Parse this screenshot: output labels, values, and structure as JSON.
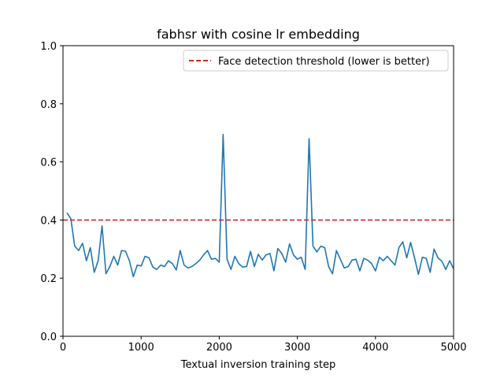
{
  "chart_data": {
    "type": "line",
    "title": "fabhsr with cosine lr embedding",
    "xlabel": "Textual inversion training step",
    "ylabel": "",
    "xlim": [
      0,
      5000
    ],
    "ylim": [
      0.0,
      1.0
    ],
    "xticks": [
      0,
      1000,
      2000,
      3000,
      4000,
      5000
    ],
    "xtick_labels": [
      "0",
      "1000",
      "2000",
      "3000",
      "4000",
      "5000"
    ],
    "yticks": [
      0.0,
      0.2,
      0.4,
      0.6,
      0.8,
      1.0
    ],
    "ytick_labels": [
      "0.0",
      "0.2",
      "0.4",
      "0.6",
      "0.8",
      "1.0"
    ],
    "grid": false,
    "legend_placement": "top-right",
    "colors": {
      "series": "#1f77b4",
      "threshold": "#d62728"
    },
    "series": [
      {
        "x": [
          50,
          100,
          150,
          200,
          250,
          300,
          350,
          400,
          450,
          500,
          550,
          600,
          650,
          700,
          750,
          800,
          850,
          900,
          950,
          1000,
          1050,
          1100,
          1150,
          1200,
          1250,
          1300,
          1350,
          1400,
          1450,
          1500,
          1550,
          1600,
          1650,
          1700,
          1750,
          1800,
          1850,
          1900,
          1950,
          2000,
          2050,
          2100,
          2150,
          2200,
          2250,
          2300,
          2350,
          2400,
          2450,
          2500,
          2550,
          2600,
          2650,
          2700,
          2750,
          2800,
          2850,
          2900,
          2950,
          3000,
          3050,
          3100,
          3150,
          3200,
          3250,
          3300,
          3350,
          3400,
          3450,
          3500,
          3550,
          3600,
          3650,
          3700,
          3750,
          3800,
          3850,
          3900,
          3950,
          4000,
          4050,
          4100,
          4150,
          4200,
          4250,
          4300,
          4350,
          4400,
          4450,
          4500,
          4550,
          4600,
          4650,
          4700,
          4750,
          4800,
          4850,
          4900,
          4950,
          5000
        ],
        "y": [
          0.425,
          0.405,
          0.31,
          0.295,
          0.32,
          0.26,
          0.305,
          0.22,
          0.26,
          0.38,
          0.215,
          0.24,
          0.275,
          0.245,
          0.295,
          0.293,
          0.26,
          0.205,
          0.245,
          0.242,
          0.275,
          0.27,
          0.238,
          0.23,
          0.245,
          0.24,
          0.26,
          0.25,
          0.228,
          0.295,
          0.245,
          0.235,
          0.24,
          0.25,
          0.262,
          0.28,
          0.295,
          0.265,
          0.268,
          0.255,
          0.695,
          0.265,
          0.23,
          0.275,
          0.25,
          0.238,
          0.24,
          0.292,
          0.24,
          0.282,
          0.262,
          0.28,
          0.285,
          0.225,
          0.302,
          0.285,
          0.255,
          0.318,
          0.28,
          0.265,
          0.272,
          0.23,
          0.68,
          0.31,
          0.29,
          0.31,
          0.305,
          0.24,
          0.215,
          0.295,
          0.265,
          0.235,
          0.24,
          0.262,
          0.265,
          0.225,
          0.268,
          0.262,
          0.25,
          0.225,
          0.272,
          0.26,
          0.275,
          0.26,
          0.245,
          0.305,
          0.325,
          0.27,
          0.323,
          0.27,
          0.213,
          0.272,
          0.268,
          0.22,
          0.3,
          0.27,
          0.258,
          0.23,
          0.26,
          0.232
        ]
      },
      {
        "name": "Face detection threshold (lower is better)",
        "x": [
          0,
          5000
        ],
        "y": [
          0.4,
          0.4
        ]
      }
    ]
  }
}
